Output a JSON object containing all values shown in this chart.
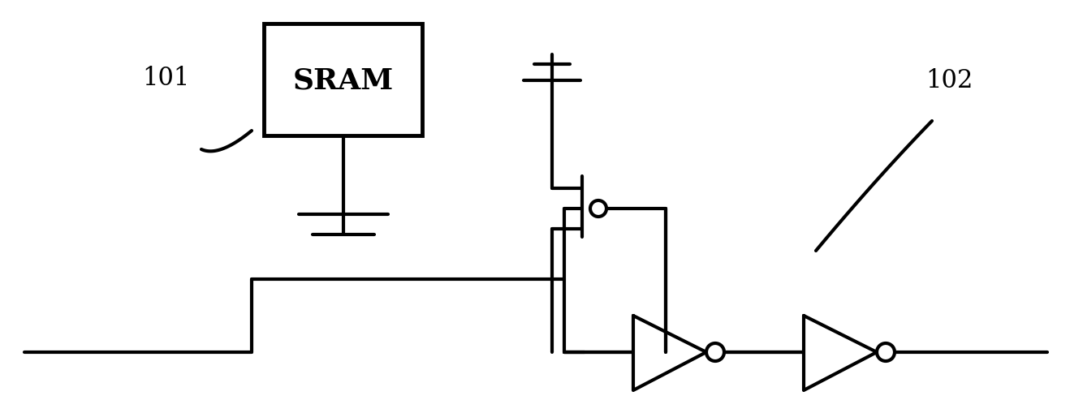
{
  "bg_color": "#ffffff",
  "line_color": "#000000",
  "lw": 3.0,
  "fig_width": 13.18,
  "fig_height": 5.1,
  "label_101": "101",
  "label_102": "102",
  "sram_label": "SRAM"
}
